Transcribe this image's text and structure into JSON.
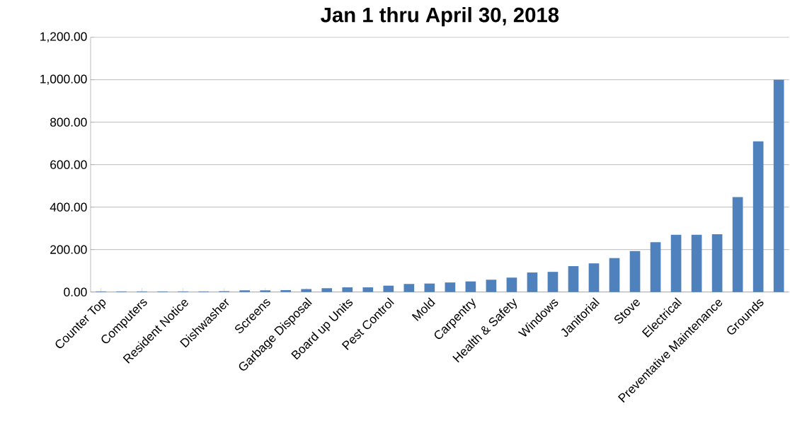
{
  "chart_data": {
    "type": "bar",
    "title": "Jan 1 thru April 30, 2018",
    "categories": [
      "Counter Top",
      null,
      "Computers",
      null,
      "Resident Notice",
      null,
      "Dishwasher",
      null,
      "Screens",
      null,
      "Garbage Disposal",
      null,
      "Board up Units",
      null,
      "Pest Control",
      null,
      "Mold",
      null,
      "Carpentry",
      null,
      "Health & Safety",
      null,
      "Windows",
      null,
      "Janitorial",
      null,
      "Stove",
      null,
      "Electrical",
      null,
      "Preventative Maintenance",
      null,
      "Grounds",
      null
    ],
    "values": [
      3,
      3,
      3,
      3,
      3,
      3,
      4,
      8,
      8,
      9,
      14,
      18,
      22,
      22,
      30,
      38,
      40,
      45,
      50,
      58,
      68,
      92,
      95,
      122,
      135,
      160,
      193,
      235,
      270,
      270,
      272,
      447,
      710,
      1000
    ],
    "color": "#4f81bd",
    "ylim": [
      0,
      1200
    ],
    "yticks": [
      {
        "value": 0,
        "label": "0.00"
      },
      {
        "value": 200,
        "label": "200.00"
      },
      {
        "value": 400,
        "label": "400.00"
      },
      {
        "value": 600,
        "label": "600.00"
      },
      {
        "value": 800,
        "label": "800.00"
      },
      {
        "value": 1000,
        "label": "1,000.00"
      },
      {
        "value": 1200,
        "label": "1,200.00"
      }
    ],
    "grid": "y"
  }
}
